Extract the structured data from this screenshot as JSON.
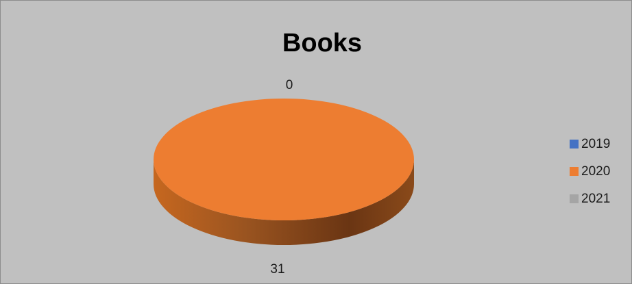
{
  "chart_data": {
    "type": "pie",
    "title": "Books",
    "categories": [
      "2019",
      "2020",
      "2021"
    ],
    "values": [
      0,
      31,
      0
    ],
    "data_labels": [
      "0",
      "31",
      ""
    ],
    "colors": [
      "#4472c4",
      "#ed7d31",
      "#a5a5a5"
    ],
    "style": "3d-pie",
    "legend": {
      "position": "right",
      "entries": [
        "2019",
        "2020",
        "2021"
      ]
    },
    "background": "#c0c0c0"
  }
}
